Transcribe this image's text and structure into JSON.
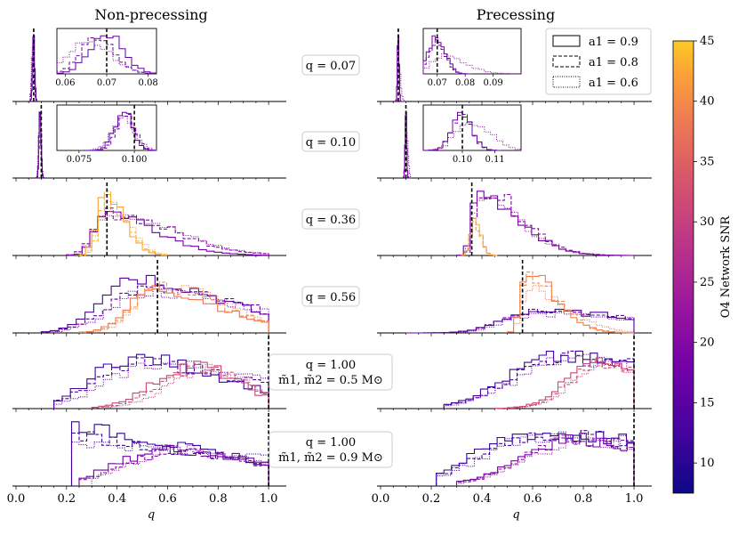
{
  "chart_data": {
    "type": "line",
    "titles": {
      "left": "Non-precessing",
      "right": "Precessing"
    },
    "xlabel": "q",
    "xticks": [
      "0.0",
      "0.2",
      "0.4",
      "0.6",
      "0.8",
      "1.0"
    ],
    "xlim": [
      0.0,
      1.07
    ],
    "legend": {
      "placement": "top-right of precessing column",
      "entries": [
        {
          "label": "a1 = 0.9",
          "style": "solid"
        },
        {
          "label": "a1 = 0.8",
          "style": "dashed"
        },
        {
          "label": "a1 = 0.6",
          "style": "dotted"
        }
      ]
    },
    "colorbar": {
      "label": "O4 Network SNR",
      "min": 7.5,
      "max": 45,
      "ticks": [
        "10",
        "15",
        "20",
        "25",
        "30",
        "35",
        "40",
        "45"
      ],
      "colormap": "plasma"
    },
    "rows": [
      {
        "label": "q = 0.07",
        "sublabel": "",
        "true_q": 0.07,
        "inset_left": {
          "xlim": [
            0.058,
            0.082
          ],
          "ticks": [
            "0.06",
            "0.07",
            "0.08"
          ]
        },
        "inset_right": {
          "xlim": [
            0.065,
            0.1
          ],
          "ticks": [
            "0.07",
            "0.08",
            "0.09"
          ]
        }
      },
      {
        "label": "q = 0.10",
        "sublabel": "",
        "true_q": 0.1,
        "inset_left": {
          "xlim": [
            0.065,
            0.11
          ],
          "ticks": [
            "0.075",
            "0.100"
          ]
        },
        "inset_right": {
          "xlim": [
            0.088,
            0.118
          ],
          "ticks": [
            "0.10",
            "0.11"
          ]
        }
      },
      {
        "label": "q = 0.36",
        "sublabel": "",
        "true_q": 0.36
      },
      {
        "label": "q = 0.56",
        "sublabel": "",
        "true_q": 0.56
      },
      {
        "label": "q = 1.00",
        "sublabel": "m̃1, m̃2 = 0.5 M⊙",
        "true_q": 1.0
      },
      {
        "label": "q = 1.00",
        "sublabel": "m̃1, m̃2 = 0.9 M⊙",
        "true_q": 1.0
      }
    ]
  }
}
